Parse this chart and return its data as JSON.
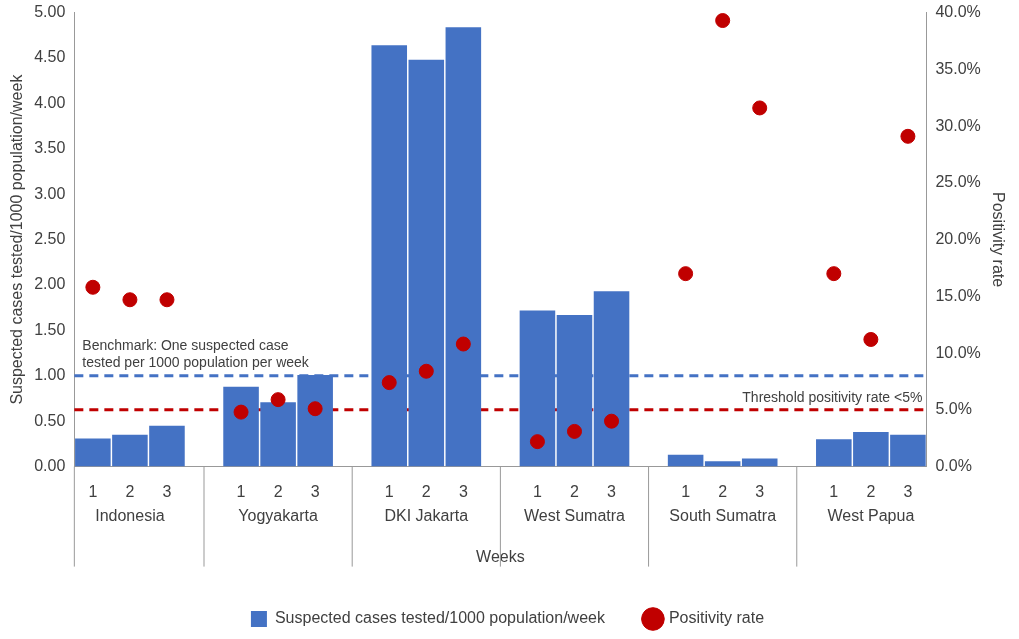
{
  "chart_data": {
    "type": "bar",
    "categories": [
      "1",
      "2",
      "3",
      null,
      "1",
      "2",
      "3",
      null,
      "1",
      "2",
      "3",
      null,
      "1",
      "2",
      "3",
      null,
      "1",
      "2",
      "3",
      null,
      "1",
      "2",
      "3"
    ],
    "series": [
      {
        "name": "Suspected cases tested/1000 population/week",
        "color": "#4472c4",
        "values": [
          0.31,
          0.35,
          0.45,
          null,
          0.88,
          0.71,
          1.01,
          null,
          4.64,
          4.48,
          4.84,
          null,
          1.72,
          1.67,
          1.93,
          null,
          0.13,
          0.06,
          0.09,
          null,
          0.3,
          0.38,
          0.35
        ]
      },
      {
        "name": "Positivity rate",
        "type": "scatter",
        "axis": "y2",
        "color": "#c00000",
        "values": [
          15.8,
          14.7,
          14.7,
          null,
          4.8,
          5.9,
          5.1,
          null,
          7.4,
          8.4,
          10.8,
          null,
          2.2,
          3.1,
          4.0,
          null,
          17.0,
          39.3,
          31.6,
          null,
          17.0,
          11.2,
          29.1
        ]
      }
    ],
    "xlabel": "Weeks",
    "ylabel": "Suspected cases tested/1000 population/week",
    "y2label": "Positivity rate",
    "ylim": [
      0,
      5
    ],
    "yticks": [
      {
        "value": 0,
        "label": "0.00"
      },
      {
        "value": 0.5,
        "label": "0.50"
      },
      {
        "value": 1,
        "label": "1.00"
      },
      {
        "value": 1.5,
        "label": "1.50"
      },
      {
        "value": 2,
        "label": "2.00"
      },
      {
        "value": 2.5,
        "label": "2.50"
      },
      {
        "value": 3,
        "label": "3.00"
      },
      {
        "value": 3.5,
        "label": "3.50"
      },
      {
        "value": 4,
        "label": "4.00"
      },
      {
        "value": 4.5,
        "label": "4.50"
      },
      {
        "value": 5,
        "label": "5.00"
      }
    ],
    "y2lim": [
      0,
      40
    ],
    "y2ticks": [
      {
        "value": 0,
        "label": "0.0%"
      },
      {
        "value": 5,
        "label": "5.0%"
      },
      {
        "value": 10,
        "label": "10.0%"
      },
      {
        "value": 15,
        "label": "15.0%"
      },
      {
        "value": 20,
        "label": "20.0%"
      },
      {
        "value": 25,
        "label": "25.0%"
      },
      {
        "value": 30,
        "label": "30.0%"
      },
      {
        "value": 35,
        "label": "35.0%"
      },
      {
        "value": 40,
        "label": "40.0%"
      }
    ],
    "ref_lines": [
      {
        "axis": "y",
        "value": 1,
        "label": "Benchmark: One suspected case tested per 1000 population per week",
        "color": "#4472c4",
        "line_style": "dashed"
      },
      {
        "axis": "y2",
        "value": 5,
        "label": "Threshold positivity rate <5%",
        "color": "#c00000",
        "line_style": "dashed"
      }
    ],
    "annotations": [
      "Indonesia",
      "Yogyakarta",
      "DKI Jakarta",
      "West Sumatra",
      "South Sumatra",
      "West Papua"
    ],
    "marker": "circle",
    "legend": "bottom",
    "grid": false
  }
}
